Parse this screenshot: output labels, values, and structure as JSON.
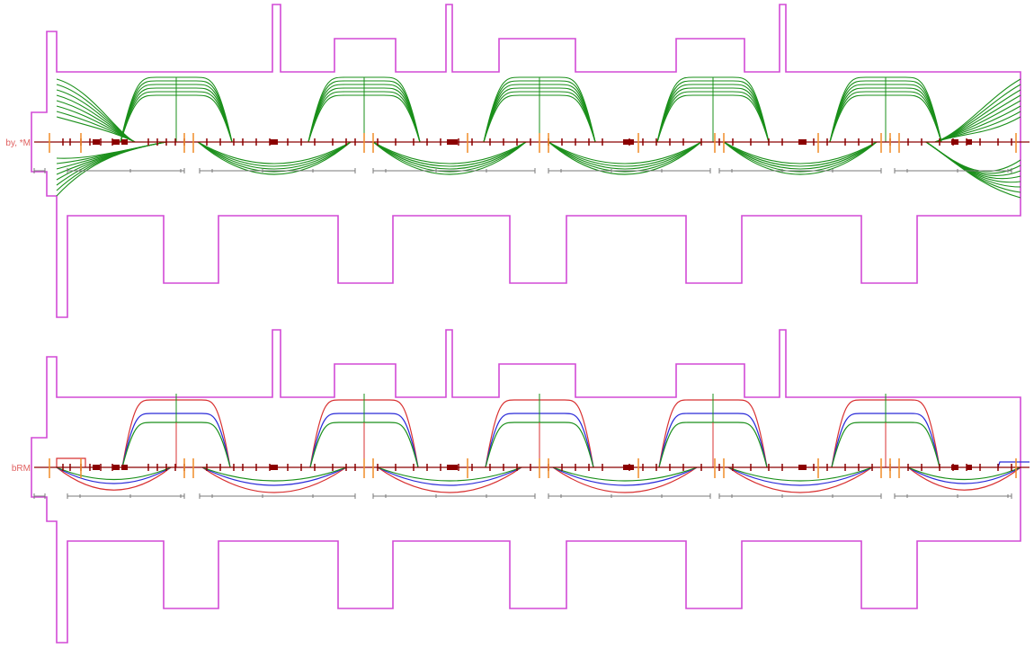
{
  "panels": [
    {
      "id": "top",
      "axis_label": "by, *M",
      "curve_style": "bundle"
    },
    {
      "id": "bottom",
      "axis_label": "bRM",
      "curve_style": "rgb"
    }
  ],
  "colors": {
    "outline": "#d24ad6",
    "beamline": "#8b0000",
    "marker": "#f08c28",
    "scale": "#7a7a7a",
    "green": "#1a8f1a",
    "blue": "#2a2ad8",
    "red": "#d83030",
    "label": "#e06060"
  }
}
